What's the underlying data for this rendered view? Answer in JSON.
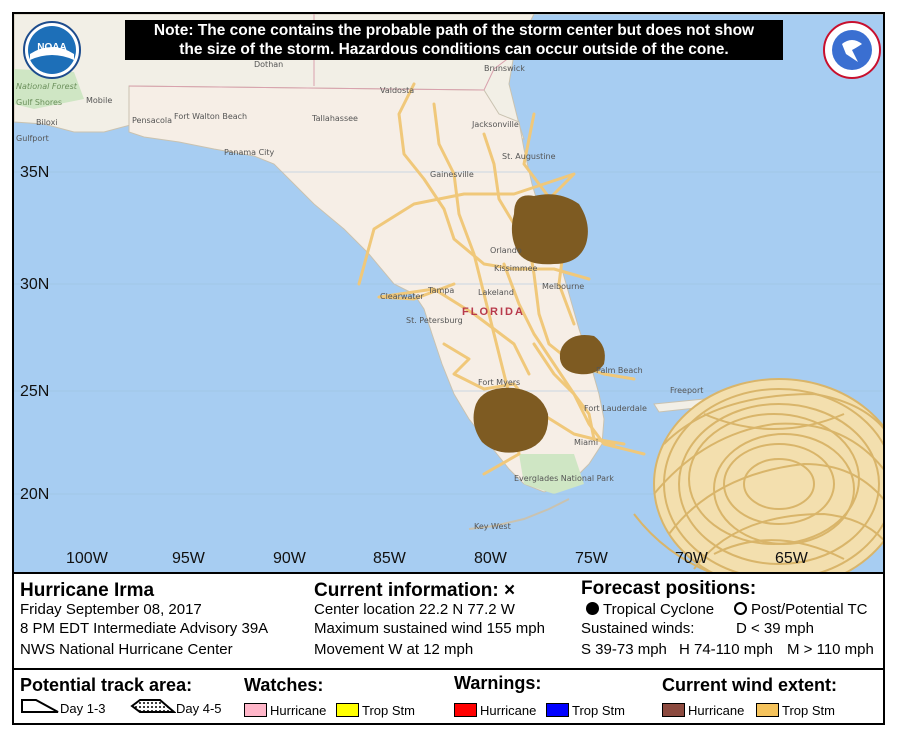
{
  "note": {
    "line1": "Note: The cone contains the probable path of the storm center but does not show",
    "line2": "the size of the storm. Hazardous conditions can occur outside of the cone."
  },
  "logos": {
    "noaa_text": "NOAA",
    "nws_text": "NATIONAL WEATHER SERVICE"
  },
  "lat_labels": [
    "35N",
    "30N",
    "25N",
    "20N"
  ],
  "lon_labels": [
    "100W",
    "95W",
    "90W",
    "85W",
    "80W",
    "75W",
    "70W",
    "65W"
  ],
  "places": {
    "state": "FLORIDA",
    "cities": [
      {
        "name": "Dothan"
      },
      {
        "name": "Mobile"
      },
      {
        "name": "Biloxi"
      },
      {
        "name": "Gulfport"
      },
      {
        "name": "Pensacola"
      },
      {
        "name": "Fort Walton Beach"
      },
      {
        "name": "Panama City"
      },
      {
        "name": "Tallahassee"
      },
      {
        "name": "Valdosta"
      },
      {
        "name": "Brunswick"
      },
      {
        "name": "Jacksonville"
      },
      {
        "name": "St. Augustine"
      },
      {
        "name": "Gainesville"
      },
      {
        "name": "Orlando"
      },
      {
        "name": "Kissimmee"
      },
      {
        "name": "Melbourne"
      },
      {
        "name": "Clearwater"
      },
      {
        "name": "Tampa"
      },
      {
        "name": "Lakeland"
      },
      {
        "name": "St. Petersburg"
      },
      {
        "name": "Fort Myers"
      },
      {
        "name": "Palm Beach"
      },
      {
        "name": "Fort Lauderdale"
      },
      {
        "name": "Miami"
      },
      {
        "name": "Freeport"
      },
      {
        "name": "Key West"
      },
      {
        "name": "Everglades National Park"
      },
      {
        "name": "Gulf Shores"
      },
      {
        "name": "National Forest"
      }
    ]
  },
  "storm": {
    "name": "Hurricane Irma",
    "date": "Friday September 08, 2017",
    "advisory": "8 PM EDT Intermediate Advisory 39A",
    "center": "NWS National Hurricane Center"
  },
  "current": {
    "heading": "Current information:",
    "marker": "×",
    "location": "Center location 22.2 N 77.2 W",
    "wind": "Maximum sustained wind 155 mph",
    "movement": "Movement W at 12 mph"
  },
  "forecast": {
    "heading": "Forecast positions:",
    "tropical": "Tropical Cyclone",
    "post": "Post/Potential TC",
    "sustained": "Sustained winds:",
    "d_range": "D < 39 mph",
    "s_range": "S 39-73 mph",
    "h_range": "H 74-110 mph",
    "m_range": "M > 110 mph"
  },
  "legend": {
    "track_heading": "Potential track area:",
    "day13": "Day 1-3",
    "day45": "Day 4-5",
    "watches_heading": "Watches:",
    "watch_hurricane": "Hurricane",
    "watch_tropstm": "Trop Stm",
    "warnings_heading": "Warnings:",
    "warn_hurricane": "Hurricane",
    "warn_tropstm": "Trop Stm",
    "wind_heading": "Current wind extent:",
    "wind_hurricane": "Hurricane",
    "wind_tropstm": "Trop Stm"
  },
  "colors": {
    "ocean": "#a7cdf2",
    "land": "#f2efe6",
    "florida": "#f6eee6",
    "route": "#f0c87a",
    "blob": "#7e5b22",
    "watch_hurricane": "#ffb6c9",
    "watch_tropstm": "#ffff00",
    "warn_hurricane": "#ff0000",
    "warn_tropstm": "#0000ff",
    "wind_hurricane": "#8c4a3f",
    "wind_tropstm": "#f5c35c",
    "noodles": "#e9c98a"
  },
  "icons": [
    "noaa-logo-icon",
    "nws-logo-icon",
    "current-position-x-icon",
    "tropical-cyclone-dot-icon",
    "post-tc-circle-icon",
    "day13-cone-icon",
    "day45-cone-icon"
  ]
}
